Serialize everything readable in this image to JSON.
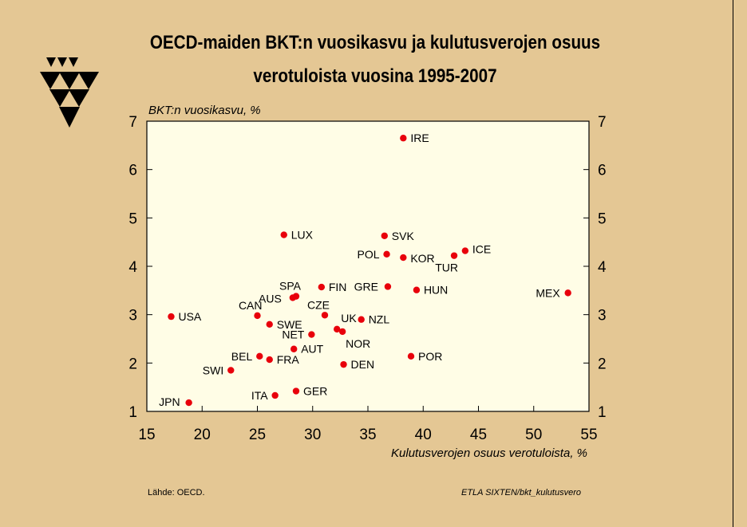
{
  "title_line1": "OECD-maiden BKT:n vuosikasvu ja kulutusverojen osuus",
  "title_line2": "verotuloista vuosina 1995-2007",
  "footer": {
    "source": "Lähde:   OECD.",
    "credit": "ETLA  SIXTEN/bkt_kulutusvero"
  },
  "colors": {
    "background": "#e4c794",
    "plot_area": "#fffde6",
    "marker": "#e8000b"
  },
  "chart_data": {
    "type": "scatter",
    "title": "OECD-maiden BKT:n vuosikasvu ja kulutusverojen osuus verotuloista vuosina 1995-2007",
    "xlabel": "Kulutusverojen osuus verotuloista, %",
    "ylabel": "BKT:n vuosikasvu, %",
    "xlim": [
      15,
      55
    ],
    "ylim": [
      1,
      7
    ],
    "xticks": [
      15,
      20,
      25,
      30,
      35,
      40,
      45,
      50,
      55
    ],
    "yticks": [
      1,
      2,
      3,
      4,
      5,
      6,
      7
    ],
    "grid": false,
    "points": [
      {
        "label": "IRE",
        "x": 38.2,
        "y": 6.65
      },
      {
        "label": "LUX",
        "x": 27.4,
        "y": 4.65
      },
      {
        "label": "SVK",
        "x": 36.5,
        "y": 4.63
      },
      {
        "label": "ICE",
        "x": 43.8,
        "y": 4.32
      },
      {
        "label": "POL",
        "x": 36.7,
        "y": 4.25
      },
      {
        "label": "KOR",
        "x": 38.2,
        "y": 4.18
      },
      {
        "label": "TUR",
        "x": 42.8,
        "y": 4.22
      },
      {
        "label": "SPA",
        "x": 28.5,
        "y": 3.38
      },
      {
        "label": "FIN",
        "x": 30.8,
        "y": 3.57
      },
      {
        "label": "AUS",
        "x": 28.2,
        "y": 3.35
      },
      {
        "label": "GRE",
        "x": 36.8,
        "y": 3.58
      },
      {
        "label": "HUN",
        "x": 39.4,
        "y": 3.51
      },
      {
        "label": "MEX",
        "x": 53.1,
        "y": 3.45
      },
      {
        "label": "CAN",
        "x": 25.0,
        "y": 2.98
      },
      {
        "label": "CZE",
        "x": 31.1,
        "y": 2.99
      },
      {
        "label": "USA",
        "x": 17.2,
        "y": 2.96
      },
      {
        "label": "UK",
        "x": 32.2,
        "y": 2.7
      },
      {
        "label": "NZL",
        "x": 34.4,
        "y": 2.9
      },
      {
        "label": "SWE",
        "x": 26.1,
        "y": 2.8
      },
      {
        "label": "NOR",
        "x": 32.7,
        "y": 2.65
      },
      {
        "label": "NET",
        "x": 29.9,
        "y": 2.59
      },
      {
        "label": "AUT",
        "x": 28.3,
        "y": 2.29
      },
      {
        "label": "BEL",
        "x": 25.2,
        "y": 2.14
      },
      {
        "label": "FRA",
        "x": 26.1,
        "y": 2.07
      },
      {
        "label": "POR",
        "x": 38.9,
        "y": 2.14
      },
      {
        "label": "DEN",
        "x": 32.8,
        "y": 1.97
      },
      {
        "label": "SWI",
        "x": 22.6,
        "y": 1.85
      },
      {
        "label": "GER",
        "x": 28.5,
        "y": 1.42
      },
      {
        "label": "ITA",
        "x": 26.6,
        "y": 1.33
      },
      {
        "label": "JPN",
        "x": 18.8,
        "y": 1.18
      }
    ]
  }
}
